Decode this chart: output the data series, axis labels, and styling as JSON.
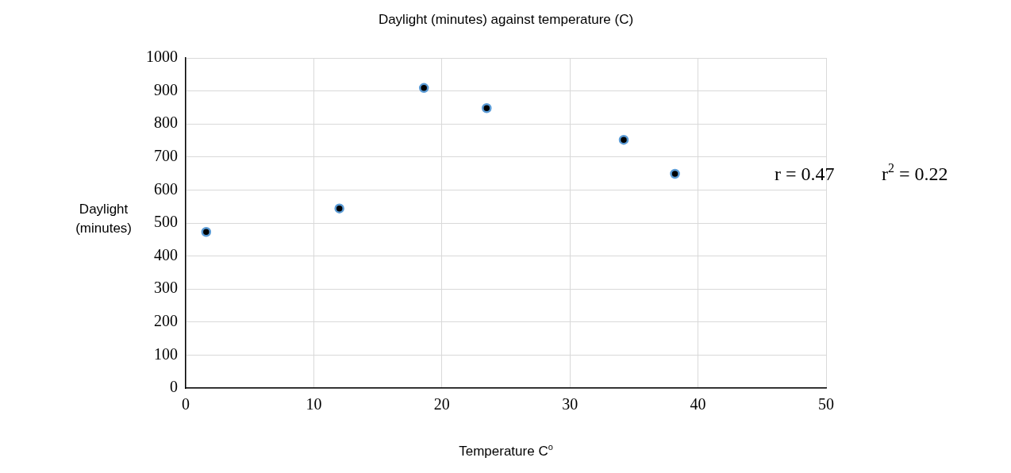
{
  "chart_data": {
    "type": "scatter",
    "title": "Daylight (minutes) against temperature (C)",
    "xlabel": "Temperature C$^{o}$",
    "ylabel": "Daylight (minutes)",
    "series": [
      {
        "color": "#000000",
        "x": [
          1.6,
          12.0,
          18.6,
          23.5,
          34.2,
          38.2
        ],
        "values": [
          473,
          544,
          909,
          848,
          752,
          649
        ]
      }
    ],
    "xlim": [
      0,
      50
    ],
    "xticks": [
      0,
      10,
      20,
      30,
      40,
      50
    ],
    "ylim": [
      0,
      1000
    ],
    "yticks": [
      0,
      100,
      200,
      300,
      400,
      500,
      600,
      700,
      800,
      900,
      1000
    ],
    "grid": true,
    "legend": false,
    "marker": "circle",
    "annotations": [
      "r = 0.47",
      "r$^{2}$ = 0.22"
    ]
  }
}
